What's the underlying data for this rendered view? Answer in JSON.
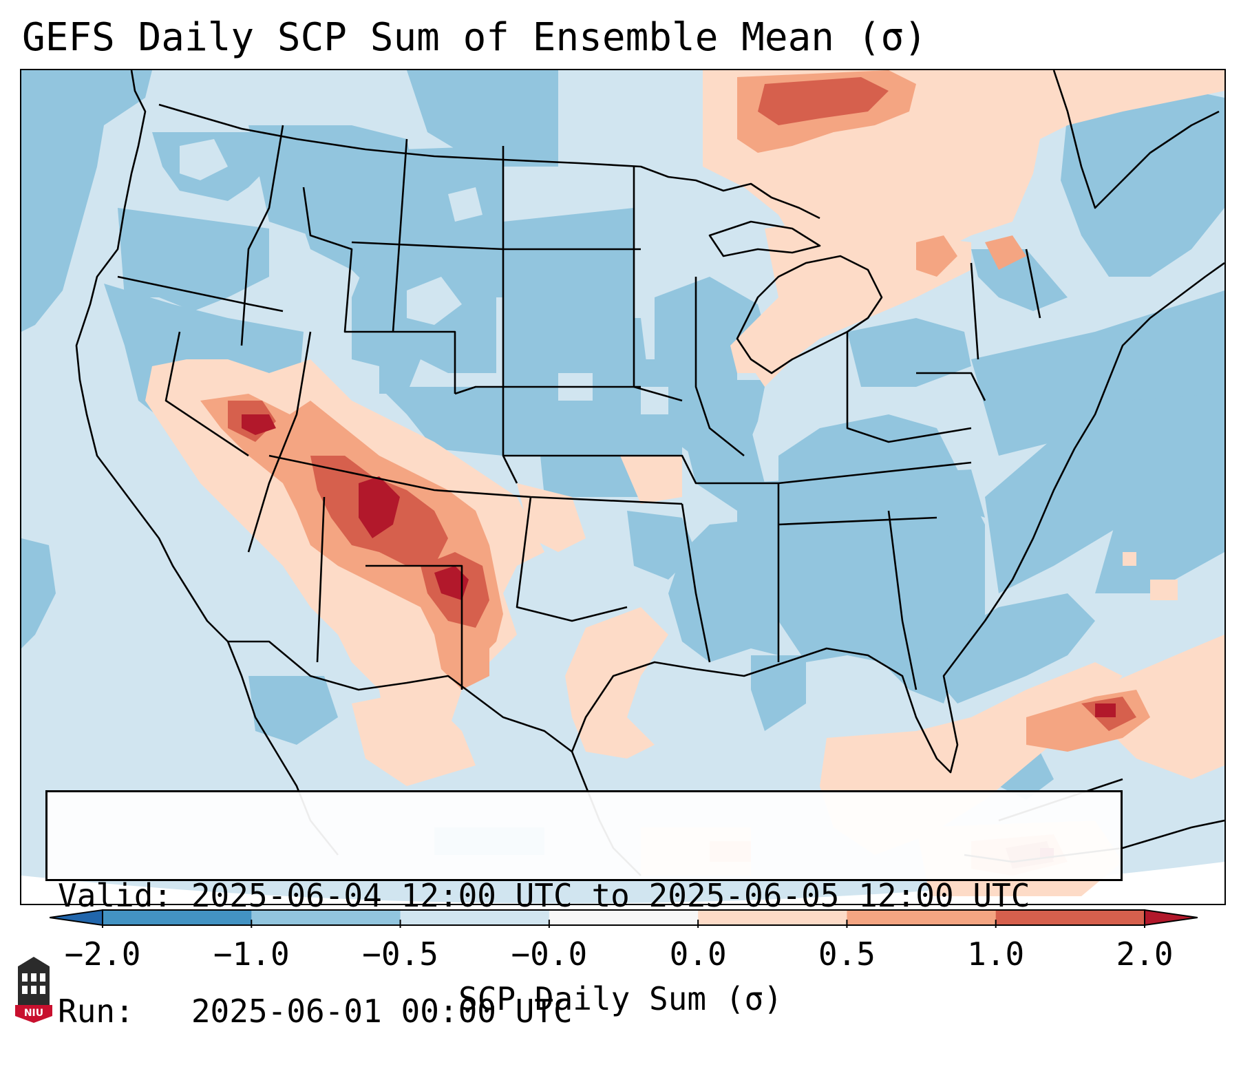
{
  "title": "GEFS Daily SCP Sum of Ensemble Mean (σ)",
  "info": {
    "valid_line": "Valid: 2025-06-04 12:00 UTC to 2025-06-05 12:00 UTC",
    "run_line": "Run:   2025-06-01 00:00 UTC"
  },
  "colorbar": {
    "label": "SCP Daily Sum (σ)",
    "ticks": [
      "−2.0",
      "−1.0",
      "−0.5",
      "−0.0",
      "0.0",
      "0.5",
      "1.0",
      "2.0"
    ],
    "bins": [
      {
        "from": -2.0,
        "to": -1.0,
        "color": "#4393c3"
      },
      {
        "from": -1.0,
        "to": -0.5,
        "color": "#92c5de"
      },
      {
        "from": -0.5,
        "to": -0.0,
        "color": "#d1e5f0"
      },
      {
        "from": -0.0,
        "to": 0.0,
        "color": "#f7f7f7"
      },
      {
        "from": 0.0,
        "to": 0.5,
        "color": "#fddbc7"
      },
      {
        "from": 0.5,
        "to": 1.0,
        "color": "#f4a582"
      },
      {
        "from": 1.0,
        "to": 2.0,
        "color": "#d6604d"
      }
    ],
    "under_color": "#2166ac",
    "over_color": "#b2182b"
  },
  "colors": {
    "strong_neg": "#2166ac",
    "neg_1": "#4393c3",
    "neg_05": "#92c5de",
    "neg_0": "#d1e5f0",
    "pos_0": "#fddbc7",
    "pos_05": "#f4a582",
    "pos_1": "#d6604d",
    "strong_pos": "#b2182b",
    "border": "#000000"
  },
  "logo": {
    "text": "NIU"
  }
}
